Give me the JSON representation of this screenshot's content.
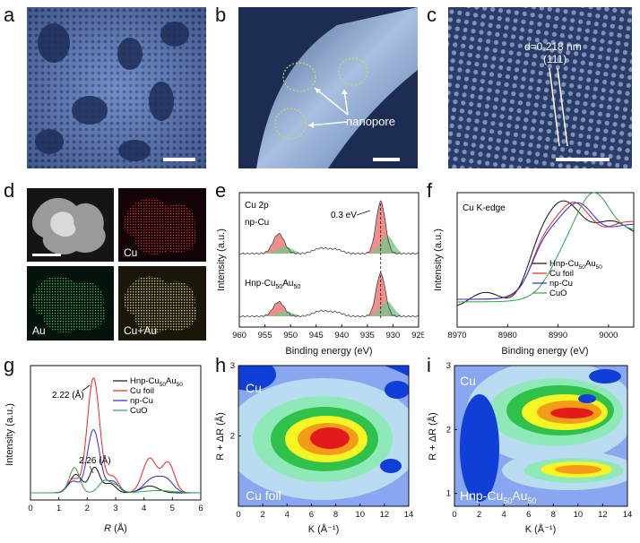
{
  "panel_labels": [
    "a",
    "b",
    "c",
    "d",
    "e",
    "f",
    "g",
    "h",
    "i"
  ],
  "panel_b": {
    "annotation": "nanopore"
  },
  "panel_c": {
    "d_spacing": "d=0.218 nm",
    "plane": "(111)"
  },
  "panel_d": {
    "tiles": [
      "Cu",
      "Au",
      "Cu+Au"
    ]
  },
  "colors": {
    "accent_red": "#e8261f",
    "blue": "#2b2bd6",
    "green": "#2ea24a",
    "black": "#111111"
  },
  "chart_data": [
    {
      "id": "e",
      "type": "line",
      "title": "Cu 2p",
      "xlabel": "Binding energy (eV)",
      "ylabel": "Intensity (a.u.)",
      "xlim": [
        960,
        925
      ],
      "xticks": [
        960,
        955,
        950,
        945,
        940,
        935,
        930,
        925
      ],
      "series_labels": [
        "np-Cu",
        "Hnp-Cu50Au50"
      ],
      "sample2_parts": [
        "Hnp-Cu",
        "50",
        "Au",
        "50"
      ],
      "annotation": "0.3 eV",
      "peaks": [
        952.3,
        932.4
      ]
    },
    {
      "id": "f",
      "type": "line",
      "title": "Cu K-edge",
      "xlabel": "Binding energy (eV)",
      "ylabel": "Intensity (a.u.)",
      "xlim": [
        8970,
        9005
      ],
      "xticks": [
        8970,
        8980,
        8990,
        9000
      ],
      "legend": [
        "Hnp-Cu50Au50",
        "Cu foil",
        "np-Cu",
        "CuO"
      ],
      "legend_parts": [
        [
          "Hnp-Cu",
          "50",
          "Au",
          "50"
        ],
        [
          "Cu foil"
        ],
        [
          "np-Cu"
        ],
        [
          "CuO"
        ]
      ],
      "series_colors": [
        "#111111",
        "#e8261f",
        "#2b2bd6",
        "#2ea24a"
      ]
    },
    {
      "id": "g",
      "type": "line",
      "xlabel": "R (Å)",
      "ylabel": "Intensity (a.u.)",
      "xlim": [
        0,
        6
      ],
      "xticks": [
        0,
        1,
        2,
        3,
        4,
        5,
        6
      ],
      "legend": [
        "Hnp-Cu50Au50",
        "Cu foil",
        "np-Cu",
        "CuO"
      ],
      "legend_parts": [
        [
          "Hnp-Cu",
          "50",
          "Au",
          "50"
        ],
        [
          "Cu foil"
        ],
        [
          "np-Cu"
        ],
        [
          "CuO"
        ]
      ],
      "annotations": [
        "2.22 (Å)",
        "2.26 (Å)"
      ],
      "peak_positions": [
        2.22,
        2.26
      ],
      "series_colors": [
        "#111111",
        "#e8261f",
        "#2b2bd6",
        "#2ea24a"
      ]
    },
    {
      "id": "h",
      "type": "heatmap",
      "xlabel": "K (Å⁻¹)",
      "ylabel": "R + ΔR (Å)",
      "xlim": [
        0,
        14
      ],
      "xticks": [
        0,
        2,
        4,
        6,
        8,
        10,
        12,
        14
      ],
      "ylim": [
        1,
        3
      ],
      "yticks": [
        2,
        3
      ],
      "labels": [
        "Cu",
        "Cu foil"
      ]
    },
    {
      "id": "i",
      "type": "heatmap",
      "xlabel": "K (Å⁻¹)",
      "ylabel": "R + ΔR (Å)",
      "xlim": [
        0,
        14
      ],
      "xticks": [
        0,
        2,
        4,
        6,
        8,
        10,
        12,
        14
      ],
      "ylim": [
        1,
        3
      ],
      "yticks": [
        1,
        2,
        3
      ],
      "labels": [
        "Cu"
      ],
      "sample_parts": [
        "Hnp-Cu",
        "50",
        "Au",
        "50"
      ]
    }
  ]
}
